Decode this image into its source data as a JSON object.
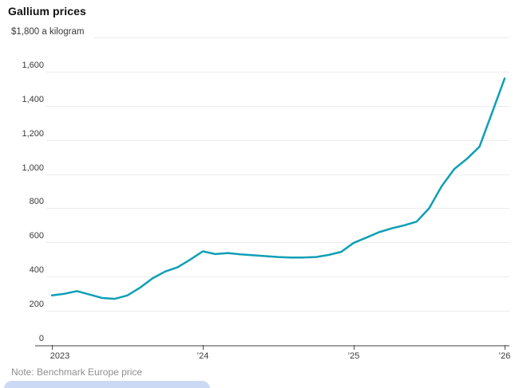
{
  "header": {
    "title": "Gallium prices"
  },
  "note": "Note: Benchmark Europe price",
  "colors": {
    "line": "#0f9fb5",
    "gridline": "#ececec",
    "baseline_axis": "#a0a0a0",
    "tick": "#4a4a4a",
    "text": "#3a3a3a",
    "title_text": "#111111",
    "note_text": "#8f8f8f",
    "bottom_overlay": "#ccd9f4",
    "background": "#ffffff"
  },
  "chart_data": {
    "type": "line",
    "title": "Gallium prices",
    "ylabel": "$1,800 a kilogram",
    "xlabel": "",
    "grid": "horizontal only",
    "legend": "none",
    "ylim": [
      0,
      1800
    ],
    "xlim_years": [
      2023,
      2026.0833
    ],
    "y_axis": {
      "top_label": "$1,800 a kilogram",
      "ticks": [
        {
          "value": 1600,
          "label": "1,600"
        },
        {
          "value": 1400,
          "label": "1,400"
        },
        {
          "value": 1200,
          "label": "1,200"
        },
        {
          "value": 1000,
          "label": "1,000"
        },
        {
          "value": 800,
          "label": "800"
        },
        {
          "value": 600,
          "label": "600"
        },
        {
          "value": 400,
          "label": "400"
        },
        {
          "value": 200,
          "label": "200"
        },
        {
          "value": 0,
          "label": "0"
        }
      ]
    },
    "x_axis": {
      "ticks": [
        {
          "year": 2023,
          "label": "2023"
        },
        {
          "year": 2024,
          "label": "’24"
        },
        {
          "year": 2025,
          "label": "’25"
        },
        {
          "year": 2026,
          "label": "’26"
        }
      ]
    },
    "series": [
      {
        "name": "Gallium price, Benchmark Europe ($ per kilogram)",
        "x_start": "2023-01",
        "interval": "monthly",
        "values": [
          290,
          300,
          315,
          295,
          275,
          270,
          290,
          335,
          390,
          430,
          455,
          500,
          548,
          532,
          538,
          530,
          525,
          520,
          515,
          512,
          512,
          515,
          527,
          545,
          598,
          628,
          660,
          682,
          700,
          722,
          800,
          930,
          1030,
          1090,
          1160,
          1360,
          1560
        ]
      }
    ]
  }
}
